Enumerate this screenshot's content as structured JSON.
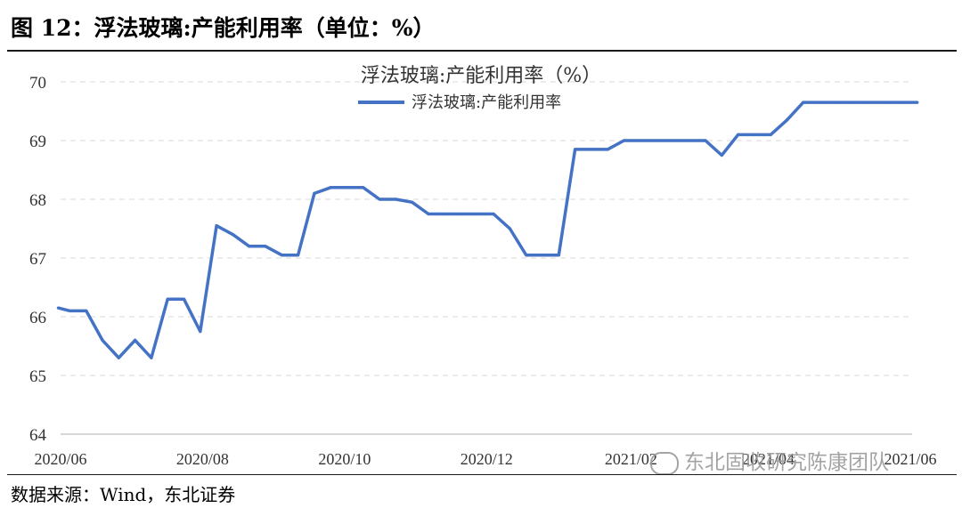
{
  "figure": {
    "title": "图 12：浮法玻璃:产能利用率（单位：%）",
    "source": "数据来源：Wind，东北证券",
    "watermark": "东北固收研究陈康团队"
  },
  "chart_data": {
    "type": "line",
    "title": "浮法玻璃:产能利用率（%）",
    "xlabel": "",
    "ylabel": "",
    "ylim": [
      64,
      70
    ],
    "yticks": [
      64,
      65,
      66,
      67,
      68,
      69,
      70
    ],
    "x_tick_labels": [
      "2020/06",
      "2020/08",
      "2020/10",
      "2020/12",
      "2021/02",
      "2021/04",
      "2021/06"
    ],
    "x_tick_dates": [
      "2020-06-01",
      "2020-08-01",
      "2020-10-01",
      "2020-12-01",
      "2021-02-01",
      "2021-04-01",
      "2021-06-01"
    ],
    "grid": "horizontal-dashed",
    "legend": "top-center",
    "colors": {
      "line": "#4472C4",
      "grid": "#d9d9d9",
      "axis": "#bfbfbf"
    },
    "series": [
      {
        "name": "浮法玻璃:产能利用率",
        "x": [
          "2020-05-31",
          "2020-06-05",
          "2020-06-12",
          "2020-06-19",
          "2020-06-26",
          "2020-07-03",
          "2020-07-10",
          "2020-07-17",
          "2020-07-24",
          "2020-07-31",
          "2020-08-07",
          "2020-08-14",
          "2020-08-21",
          "2020-08-28",
          "2020-09-04",
          "2020-09-11",
          "2020-09-18",
          "2020-09-25",
          "2020-10-02",
          "2020-10-09",
          "2020-10-16",
          "2020-10-23",
          "2020-10-30",
          "2020-11-06",
          "2020-11-13",
          "2020-11-20",
          "2020-11-27",
          "2020-12-04",
          "2020-12-11",
          "2020-12-18",
          "2020-12-25",
          "2021-01-01",
          "2021-01-08",
          "2021-01-15",
          "2021-01-22",
          "2021-01-29",
          "2021-02-05",
          "2021-02-12",
          "2021-02-19",
          "2021-02-26",
          "2021-03-05",
          "2021-03-12",
          "2021-03-19",
          "2021-03-26",
          "2021-04-02",
          "2021-04-09",
          "2021-04-16",
          "2021-04-23",
          "2021-04-30",
          "2021-05-07",
          "2021-05-14",
          "2021-05-21",
          "2021-05-28",
          "2021-06-04"
        ],
        "values": [
          66.15,
          66.1,
          66.1,
          65.6,
          65.3,
          65.6,
          65.3,
          66.3,
          66.3,
          65.75,
          67.55,
          67.4,
          67.2,
          67.2,
          67.05,
          67.05,
          68.1,
          68.2,
          68.2,
          68.2,
          68.0,
          68.0,
          67.95,
          67.75,
          67.75,
          67.75,
          67.75,
          67.75,
          67.5,
          67.05,
          67.05,
          67.05,
          68.85,
          68.85,
          68.85,
          69.0,
          69.0,
          69.0,
          69.0,
          69.0,
          69.0,
          68.75,
          69.1,
          69.1,
          69.1,
          69.35,
          69.65,
          69.65,
          69.65,
          69.65,
          69.65,
          69.65,
          69.65,
          69.65
        ]
      }
    ]
  }
}
